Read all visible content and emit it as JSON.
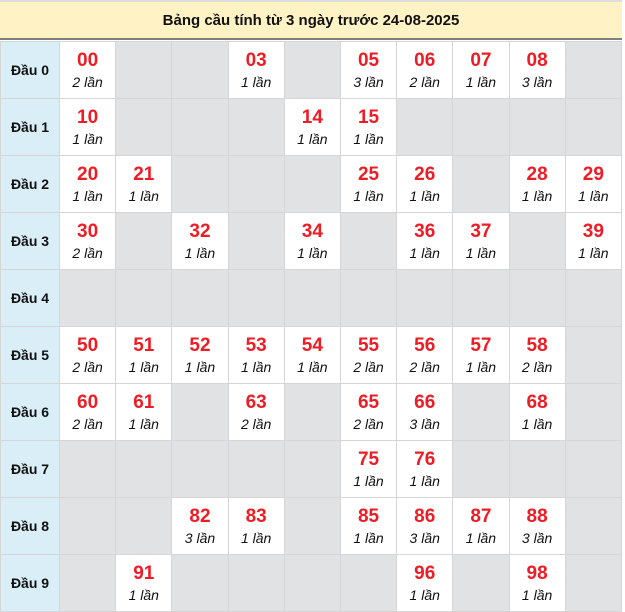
{
  "title": "Bảng cầu tính từ 3 ngày trước 24-08-2025",
  "colors": {
    "number": "#ee1c25",
    "header_bg": "#fff2c4",
    "row_head_bg": "#daeef8",
    "empty_bg": "#e1e2e4"
  },
  "rows": [
    {
      "label": "Đầu 0",
      "cells": [
        {
          "n": "00",
          "c": "2 lần"
        },
        null,
        null,
        {
          "n": "03",
          "c": "1 lần"
        },
        null,
        {
          "n": "05",
          "c": "3 lần"
        },
        {
          "n": "06",
          "c": "2 lần"
        },
        {
          "n": "07",
          "c": "1 lần"
        },
        {
          "n": "08",
          "c": "3 lần"
        },
        null
      ]
    },
    {
      "label": "Đầu 1",
      "cells": [
        {
          "n": "10",
          "c": "1 lần"
        },
        null,
        null,
        null,
        {
          "n": "14",
          "c": "1 lần"
        },
        {
          "n": "15",
          "c": "1 lần"
        },
        null,
        null,
        null,
        null
      ]
    },
    {
      "label": "Đầu 2",
      "cells": [
        {
          "n": "20",
          "c": "1 lần"
        },
        {
          "n": "21",
          "c": "1 lần"
        },
        null,
        null,
        null,
        {
          "n": "25",
          "c": "1 lần"
        },
        {
          "n": "26",
          "c": "1 lần"
        },
        null,
        {
          "n": "28",
          "c": "1 lần"
        },
        {
          "n": "29",
          "c": "1 lần"
        }
      ]
    },
    {
      "label": "Đầu 3",
      "cells": [
        {
          "n": "30",
          "c": "2 lần"
        },
        null,
        {
          "n": "32",
          "c": "1 lần"
        },
        null,
        {
          "n": "34",
          "c": "1 lần"
        },
        null,
        {
          "n": "36",
          "c": "1 lần"
        },
        {
          "n": "37",
          "c": "1 lần"
        },
        null,
        {
          "n": "39",
          "c": "1 lần"
        }
      ]
    },
    {
      "label": "Đầu 4",
      "cells": [
        null,
        null,
        null,
        null,
        null,
        null,
        null,
        null,
        null,
        null
      ]
    },
    {
      "label": "Đầu 5",
      "cells": [
        {
          "n": "50",
          "c": "2 lần"
        },
        {
          "n": "51",
          "c": "1 lần"
        },
        {
          "n": "52",
          "c": "1 lần"
        },
        {
          "n": "53",
          "c": "1 lần"
        },
        {
          "n": "54",
          "c": "1 lần"
        },
        {
          "n": "55",
          "c": "2 lần"
        },
        {
          "n": "56",
          "c": "2 lần"
        },
        {
          "n": "57",
          "c": "1 lần"
        },
        {
          "n": "58",
          "c": "2 lần"
        },
        null
      ]
    },
    {
      "label": "Đầu 6",
      "cells": [
        {
          "n": "60",
          "c": "2 lần"
        },
        {
          "n": "61",
          "c": "1 lần"
        },
        null,
        {
          "n": "63",
          "c": "2 lần"
        },
        null,
        {
          "n": "65",
          "c": "2 lần"
        },
        {
          "n": "66",
          "c": "3 lần"
        },
        null,
        {
          "n": "68",
          "c": "1 lần"
        },
        null
      ]
    },
    {
      "label": "Đầu 7",
      "cells": [
        null,
        null,
        null,
        null,
        null,
        {
          "n": "75",
          "c": "1 lần"
        },
        {
          "n": "76",
          "c": "1 lần"
        },
        null,
        null,
        null
      ]
    },
    {
      "label": "Đầu 8",
      "cells": [
        null,
        null,
        {
          "n": "82",
          "c": "3 lần"
        },
        {
          "n": "83",
          "c": "1 lần"
        },
        null,
        {
          "n": "85",
          "c": "1 lần"
        },
        {
          "n": "86",
          "c": "3 lần"
        },
        {
          "n": "87",
          "c": "1 lần"
        },
        {
          "n": "88",
          "c": "3 lần"
        },
        null
      ]
    },
    {
      "label": "Đầu 9",
      "cells": [
        null,
        {
          "n": "91",
          "c": "1 lần"
        },
        null,
        null,
        null,
        null,
        {
          "n": "96",
          "c": "1 lần"
        },
        null,
        {
          "n": "98",
          "c": "1 lần"
        },
        null
      ]
    }
  ]
}
